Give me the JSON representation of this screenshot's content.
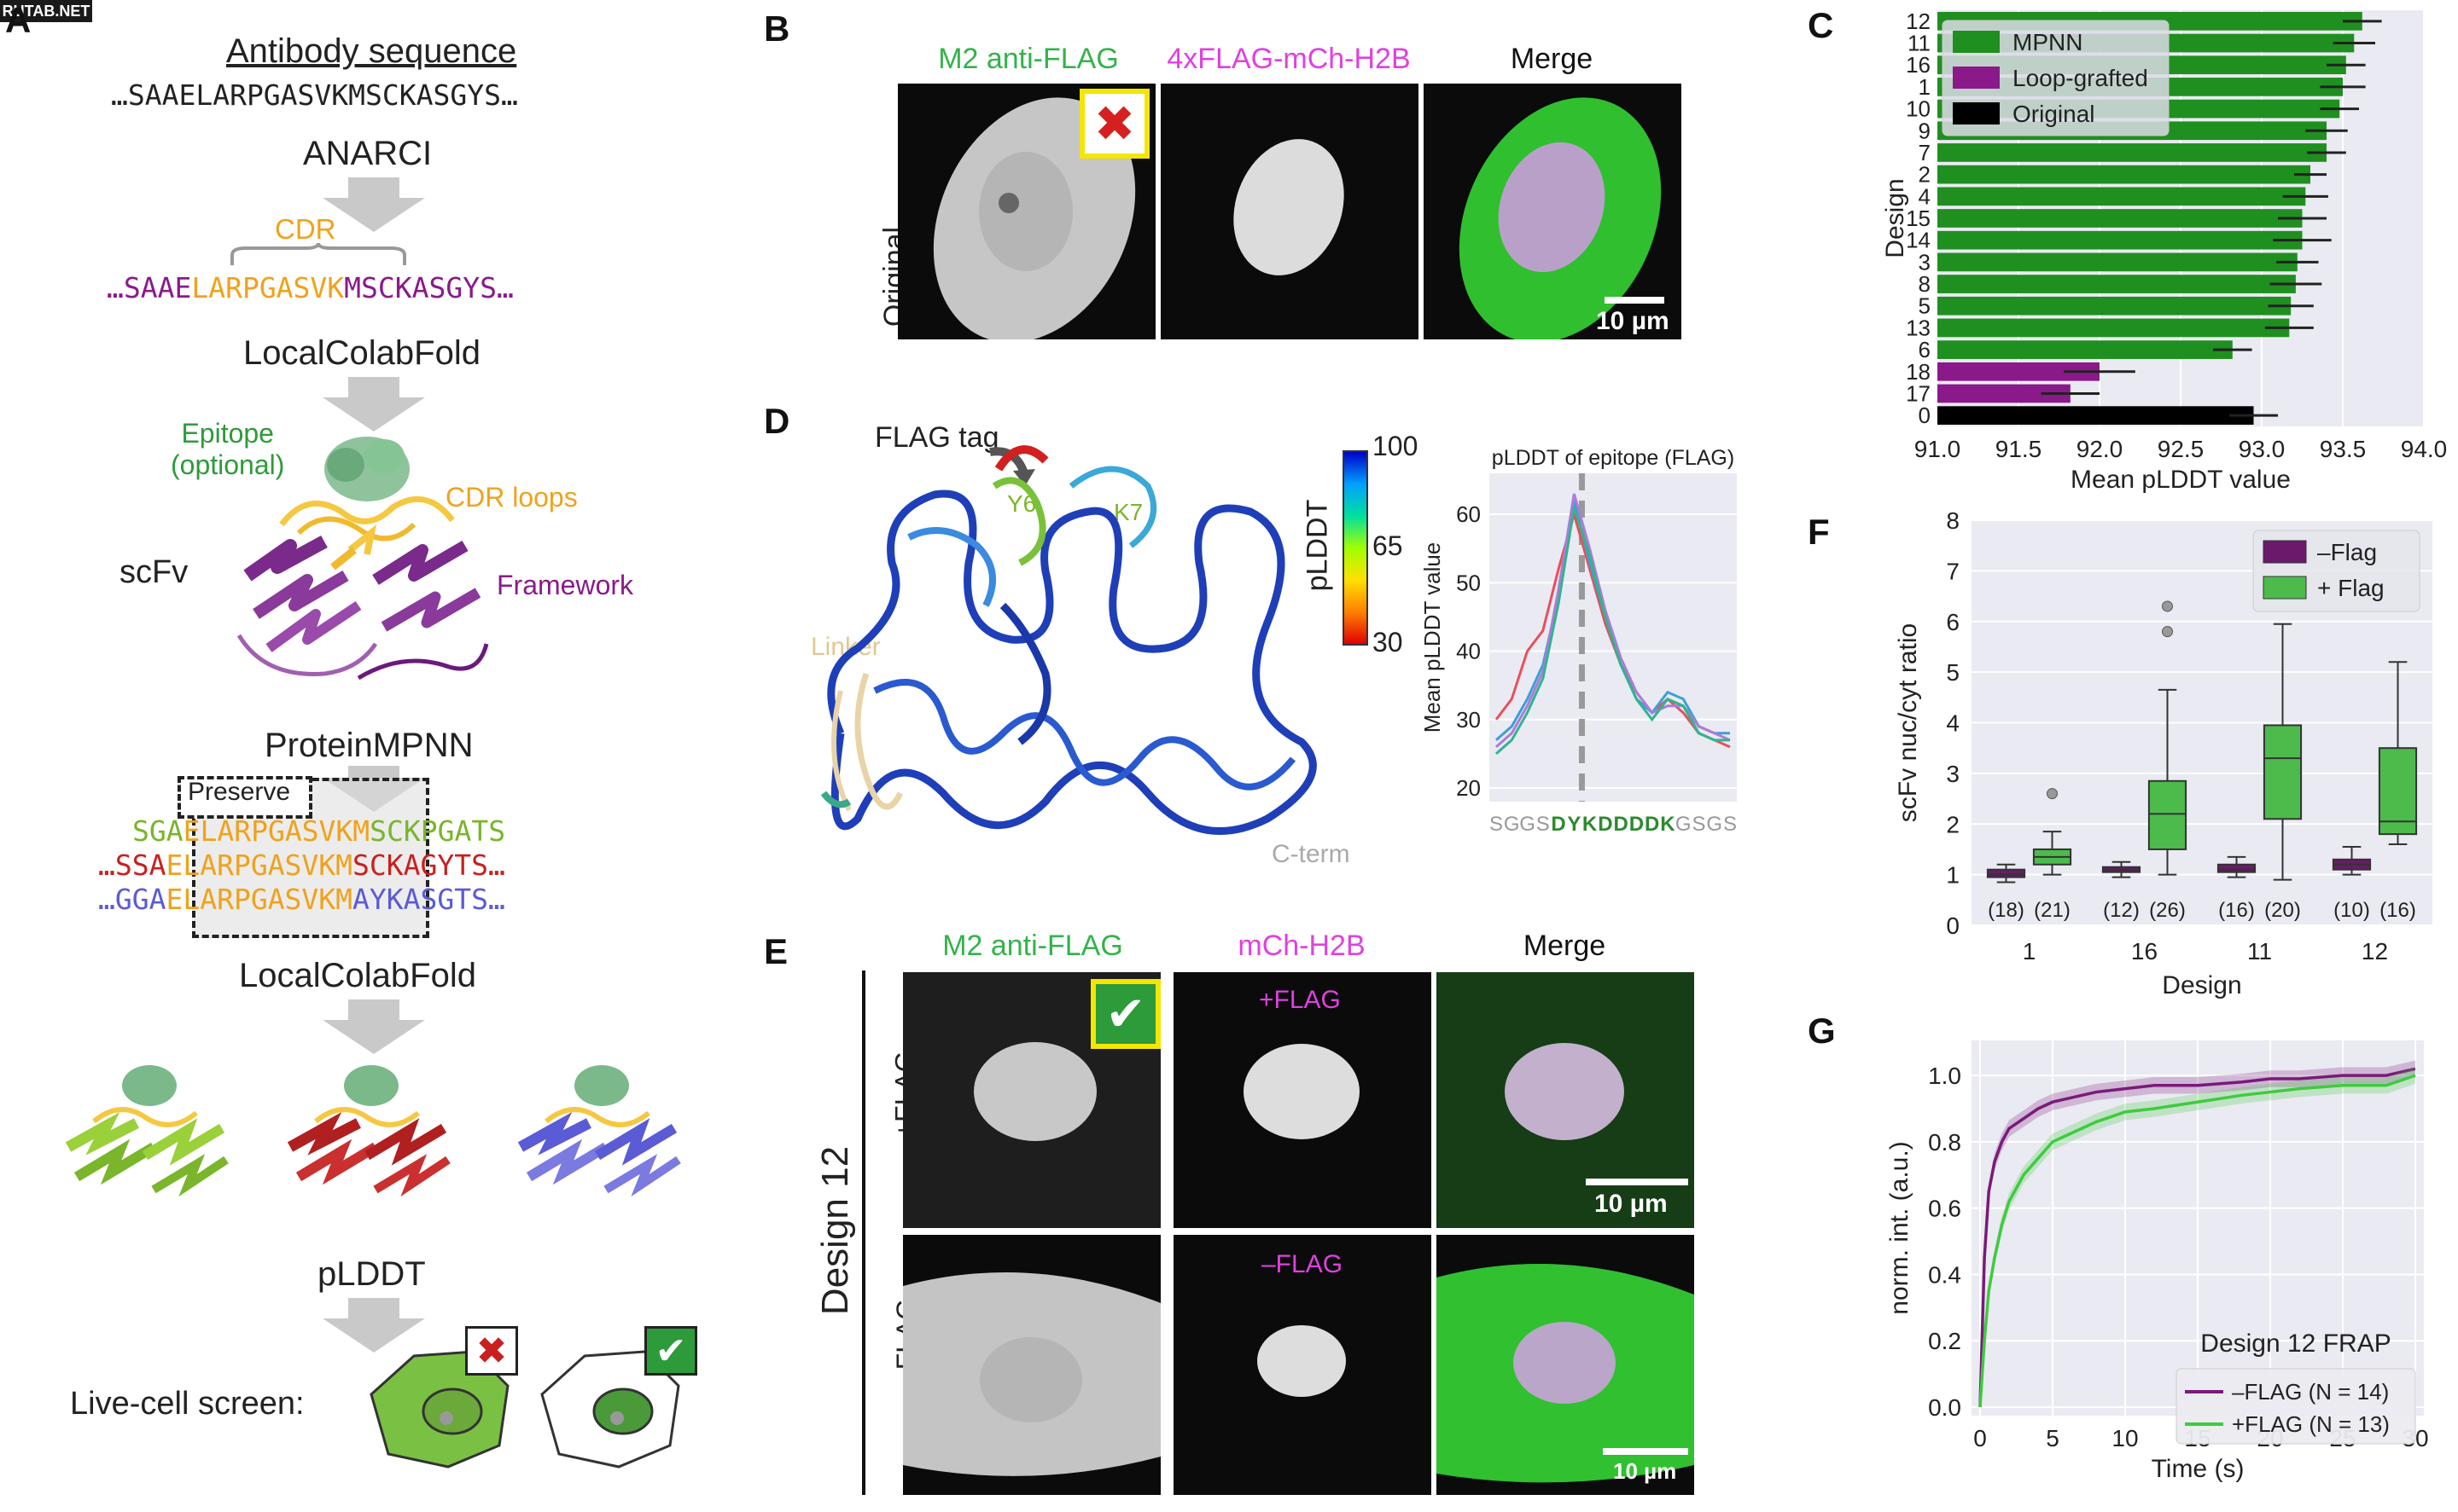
{
  "watermark": "RUTAB.NET",
  "panels": {
    "A": "A",
    "B": "B",
    "C": "C",
    "D": "D",
    "E": "E",
    "F": "F",
    "G": "G"
  },
  "panelA": {
    "title": "Antibody sequence",
    "seq1": "…SAAELARPGASVKMSCKASGYS…",
    "step1": "ANARCI",
    "cdr_label": "CDR",
    "seq2_pre": "…SAAE",
    "seq2_cdr": "LARPGASVK",
    "seq2_post": "MSCKASGYS…",
    "step2": "LocalColabFold",
    "epitope_label": "Epitope",
    "epitope_optional": "(optional)",
    "cdr_loops": "CDR loops",
    "scfv": "scFv",
    "framework": "Framework",
    "step3": "ProteinMPNN",
    "preserve": "Preserve",
    "mpnn_seqs": [
      {
        "pre": "SGA",
        "mid": "ELARPGASVKM",
        "post": "SCKPGATS",
        "color": "#7ab52c"
      },
      {
        "pre": "…SSA",
        "mid": "ELARPGASVKM",
        "post": "SCKAGYTS…",
        "color": "#c9201f"
      },
      {
        "pre": "…GGA",
        "mid": "ELARPGASVKM",
        "post": "AYKASGTS…",
        "color": "#5b5bd6"
      }
    ],
    "step4": "LocalColabFold",
    "step5": "pLDDT",
    "screen": "Live-cell screen:"
  },
  "panelB": {
    "headers": [
      "M2 anti-FLAG",
      "4xFLAG-mCh-H2B",
      "Merge"
    ],
    "row_label": "Original",
    "scale": "10 µm"
  },
  "panelC": {
    "chart_data": {
      "type": "bar",
      "orientation": "horizontal",
      "ylabel": "Design",
      "xlabel": "Mean pLDDT value",
      "xlim": [
        91.0,
        94.0
      ],
      "xticks": [
        "91.0",
        "91.5",
        "92.0",
        "92.5",
        "93.0",
        "93.5",
        "94.0"
      ],
      "categories": [
        "12",
        "11",
        "16",
        "1",
        "10",
        "9",
        "7",
        "2",
        "4",
        "15",
        "14",
        "3",
        "8",
        "5",
        "13",
        "6",
        "18",
        "17",
        "0"
      ],
      "values": [
        93.62,
        93.57,
        93.52,
        93.5,
        93.48,
        93.4,
        93.4,
        93.3,
        93.27,
        93.25,
        93.25,
        93.22,
        93.21,
        93.18,
        93.17,
        92.82,
        92.0,
        91.82,
        92.95
      ],
      "errors": [
        0.12,
        0.13,
        0.12,
        0.14,
        0.12,
        0.13,
        0.12,
        0.1,
        0.14,
        0.15,
        0.18,
        0.13,
        0.16,
        0.14,
        0.15,
        0.12,
        0.22,
        0.18,
        0.15
      ],
      "groups": [
        "MPNN",
        "MPNN",
        "MPNN",
        "MPNN",
        "MPNN",
        "MPNN",
        "MPNN",
        "MPNN",
        "MPNN",
        "MPNN",
        "MPNN",
        "MPNN",
        "MPNN",
        "MPNN",
        "MPNN",
        "MPNN",
        "Loop-grafted",
        "Loop-grafted",
        "Original"
      ],
      "legend": [
        {
          "name": "MPNN",
          "color": "#1f8f1f"
        },
        {
          "name": "Loop-grafted",
          "color": "#8a1a8a"
        },
        {
          "name": "Original",
          "color": "#000000"
        }
      ],
      "legend_position": "top-left",
      "grid": true
    }
  },
  "panelD": {
    "flag_tag": "FLAG tag",
    "y6": "Y6",
    "k7": "K7",
    "linker": "Linker",
    "cterm": "C-term",
    "colorbar_label": "pLDDT",
    "colorbar_ticks": [
      "100",
      "65",
      "30"
    ],
    "chart_data": {
      "type": "line",
      "title": "pLDDT of epitope (FLAG)",
      "ylabel": "Mean pLDDT value",
      "ylim": [
        18,
        66
      ],
      "yticks": [
        "20",
        "30",
        "40",
        "50",
        "60"
      ],
      "x_residues": [
        "S",
        "G",
        "G",
        "S",
        "D",
        "Y",
        "K",
        "D",
        "D",
        "D",
        "D",
        "K",
        "G",
        "S",
        "G",
        "S"
      ],
      "x_colors": [
        "#999999",
        "#999999",
        "#999999",
        "#999999",
        "#2d8a2d",
        "#2d8a2d",
        "#2d8a2d",
        "#2d8a2d",
        "#2d8a2d",
        "#2d8a2d",
        "#2d8a2d",
        "#2d8a2d",
        "#999999",
        "#999999",
        "#999999",
        "#999999"
      ],
      "series": [
        {
          "color": "#e8505b",
          "values": [
            30,
            33,
            40,
            43,
            52,
            60,
            52,
            44,
            38,
            34,
            31,
            33,
            31,
            28,
            27,
            26
          ]
        },
        {
          "color": "#3aa0d8",
          "values": [
            27,
            29,
            33,
            38,
            48,
            62,
            53,
            45,
            38,
            33,
            31,
            34,
            33,
            29,
            28,
            28
          ]
        },
        {
          "color": "#b07ad8",
          "values": [
            26,
            28,
            32,
            37,
            49,
            63,
            55,
            46,
            39,
            34,
            31,
            32,
            32,
            29,
            28,
            27
          ]
        },
        {
          "color": "#2fb58f",
          "values": [
            25,
            27,
            31,
            36,
            47,
            61,
            54,
            45,
            38,
            33,
            30,
            33,
            32,
            28,
            27,
            27
          ]
        }
      ],
      "vline_index": 5.5,
      "grid": true
    }
  },
  "panelE": {
    "headers": [
      "M2 anti-FLAG",
      "mCh-H2B",
      "Merge"
    ],
    "group_label": "Design 12",
    "row1_label": "+FLAG",
    "row2_label": "–FLAG",
    "row1_tag": "+FLAG",
    "row2_tag": "–FLAG",
    "scale": "10 µm"
  },
  "panelF": {
    "chart_data": {
      "type": "box",
      "xlabel": "Design",
      "ylabel": "scFv nuc/cyt ratio",
      "ylim": [
        0,
        8
      ],
      "yticks": [
        "0",
        "1",
        "2",
        "3",
        "4",
        "5",
        "6",
        "7",
        "8"
      ],
      "categories": [
        "1",
        "16",
        "11",
        "12"
      ],
      "legend": [
        {
          "name": "–Flag",
          "color": "#6b1a6b"
        },
        {
          "name": "+ Flag",
          "color": "#4cbb4c"
        }
      ],
      "legend_position": "top-right",
      "counts": [
        [
          "(18)",
          "(21)"
        ],
        [
          "(12)",
          "(26)"
        ],
        [
          "(16)",
          "(20)"
        ],
        [
          "(10)",
          "(16)"
        ]
      ],
      "boxes": [
        {
          "design": "1",
          "group": "–Flag",
          "min": 0.85,
          "q1": 0.95,
          "median": 1.0,
          "q3": 1.1,
          "max": 1.2
        },
        {
          "design": "1",
          "group": "+ Flag",
          "min": 1.0,
          "q1": 1.2,
          "median": 1.35,
          "q3": 1.5,
          "max": 1.85
        },
        {
          "design": "16",
          "group": "–Flag",
          "min": 0.95,
          "q1": 1.05,
          "median": 1.1,
          "q3": 1.15,
          "max": 1.25
        },
        {
          "design": "16",
          "group": "+ Flag",
          "min": 1.0,
          "q1": 1.5,
          "median": 2.2,
          "q3": 2.85,
          "max": 4.65
        },
        {
          "design": "11",
          "group": "–Flag",
          "min": 0.95,
          "q1": 1.05,
          "median": 1.1,
          "q3": 1.2,
          "max": 1.35
        },
        {
          "design": "11",
          "group": "+ Flag",
          "min": 0.9,
          "q1": 2.1,
          "median": 3.3,
          "q3": 3.95,
          "max": 5.95
        },
        {
          "design": "12",
          "group": "–Flag",
          "min": 1.0,
          "q1": 1.1,
          "median": 1.2,
          "q3": 1.3,
          "max": 1.55
        },
        {
          "design": "12",
          "group": "+ Flag",
          "min": 1.6,
          "q1": 1.8,
          "median": 2.05,
          "q3": 3.5,
          "max": 5.2
        }
      ],
      "outliers": [
        [
          1,
          "+ Flag",
          2.6
        ],
        [
          16,
          "+ Flag",
          6.3
        ],
        [
          16,
          "+ Flag",
          5.8
        ]
      ]
    }
  },
  "panelG": {
    "chart_data": {
      "type": "line",
      "title": "Design 12 FRAP",
      "xlabel": "Time (s)",
      "ylabel": "norm. int. (a.u.)",
      "xlim": [
        0,
        30
      ],
      "ylim": [
        0,
        1.08
      ],
      "xticks": [
        "0",
        "5",
        "10",
        "15",
        "20",
        "25",
        "30"
      ],
      "yticks": [
        "0.0",
        "0.2",
        "0.4",
        "0.6",
        "0.8",
        "1.0"
      ],
      "series": [
        {
          "name": "–FLAG (N = 14)",
          "color": "#7a1a7a",
          "x": [
            0,
            0.3,
            0.6,
            1,
            1.5,
            2,
            3,
            4,
            5,
            6,
            8,
            10,
            12,
            15,
            18,
            20,
            22,
            25,
            28,
            30
          ],
          "y": [
            0.0,
            0.45,
            0.65,
            0.74,
            0.8,
            0.84,
            0.87,
            0.9,
            0.92,
            0.93,
            0.95,
            0.96,
            0.97,
            0.97,
            0.98,
            0.99,
            0.99,
            1.0,
            1.0,
            1.02
          ]
        },
        {
          "name": "+FLAG (N = 13)",
          "color": "#3ecb3e",
          "x": [
            0,
            0.3,
            0.6,
            1,
            1.5,
            2,
            3,
            4,
            5,
            6,
            8,
            10,
            12,
            15,
            18,
            20,
            22,
            25,
            28,
            30
          ],
          "y": [
            0.0,
            0.2,
            0.35,
            0.45,
            0.55,
            0.62,
            0.7,
            0.75,
            0.8,
            0.82,
            0.86,
            0.89,
            0.9,
            0.92,
            0.94,
            0.95,
            0.96,
            0.97,
            0.97,
            1.0
          ]
        }
      ],
      "legend_position": "bottom-right",
      "grid": true
    },
    "legend_labels": [
      "–FLAG (",
      "N",
      " = 14)",
      "+FLAG (",
      "N",
      " = 13)"
    ]
  }
}
